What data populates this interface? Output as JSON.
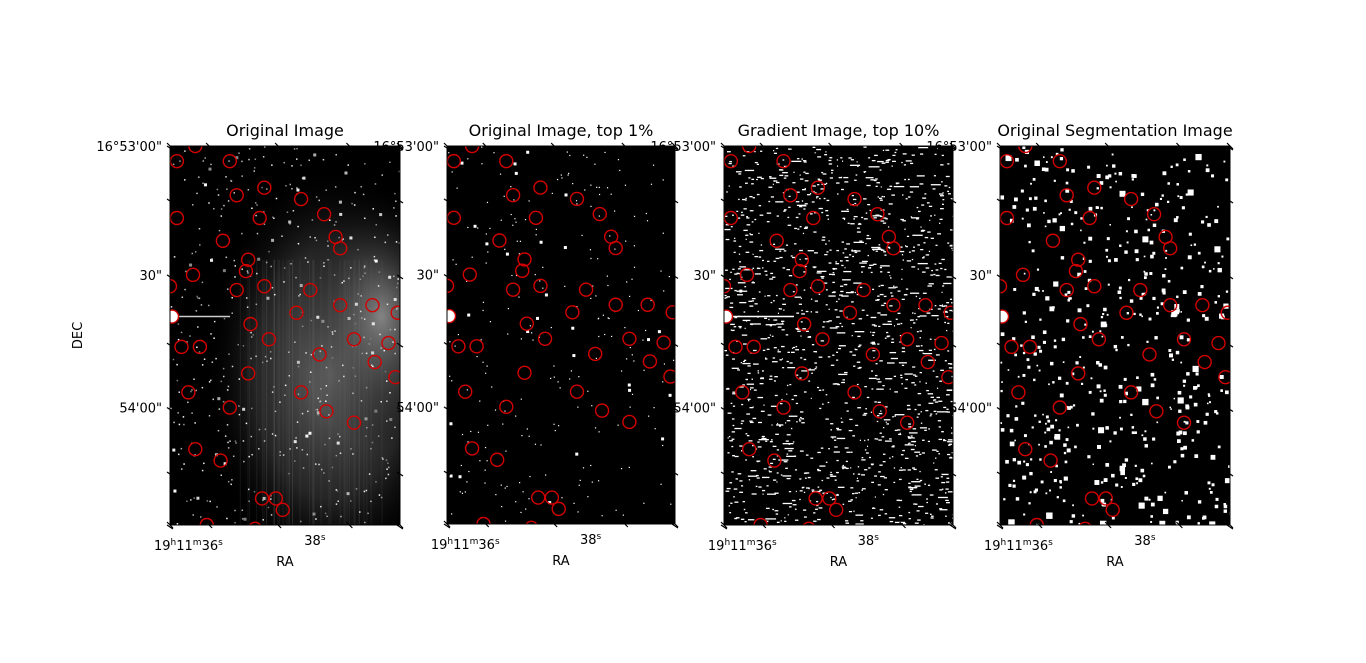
{
  "figure": {
    "background": "#ffffff",
    "marker_color": "#d40000"
  },
  "chart_data": [
    {
      "type": "image",
      "title": "Original Image",
      "xlabel": "RA",
      "ylabel": "DEC",
      "xtick_labels": [
        "19h11m36s",
        "38s"
      ],
      "ytick_labels": [
        "16°53'00\"",
        "30\"",
        "54'00\""
      ],
      "show_ylabel": true,
      "style": "grayscale-nebula"
    },
    {
      "type": "image",
      "title": "Original Image, top 1%",
      "xlabel": "RA",
      "ylabel": "",
      "xtick_labels": [
        "19h11m36s",
        "38s"
      ],
      "ytick_labels": [
        "16°53'00\"",
        "30\"",
        "54'00\""
      ],
      "show_ylabel": false,
      "style": "sparse"
    },
    {
      "type": "image",
      "title": "Gradient Image, top 10%",
      "xlabel": "RA",
      "ylabel": "",
      "xtick_labels": [
        "19h11m36s",
        "38s"
      ],
      "ytick_labels": [
        "16°53'00\"",
        "30\"",
        "54'00\""
      ],
      "show_ylabel": false,
      "style": "dense-streaks"
    },
    {
      "type": "image",
      "title": "Original Segmentation Image",
      "xlabel": "RA",
      "ylabel": "",
      "xtick_labels": [
        "19h11m36s",
        "38s"
      ],
      "ytick_labels": [
        "16°53'00\"",
        "30\"",
        "54'00\""
      ],
      "show_ylabel": false,
      "style": "blocky"
    }
  ]
}
